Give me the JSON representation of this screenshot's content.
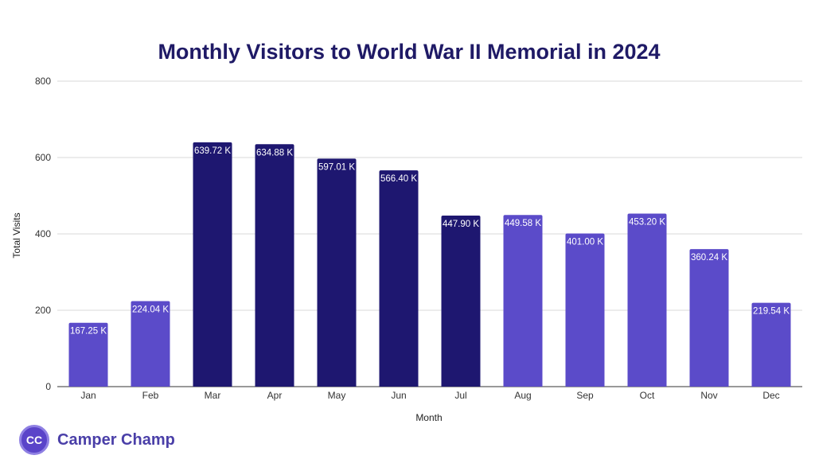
{
  "chart_data": {
    "type": "bar",
    "title": "Monthly Visitors to World War II Memorial in 2024",
    "xlabel": "Month",
    "ylabel": "Total Visits",
    "ylim": [
      0,
      800
    ],
    "yticks": [
      0,
      200,
      400,
      600,
      800
    ],
    "grid": true,
    "categories": [
      "Jan",
      "Feb",
      "Mar",
      "Apr",
      "May",
      "Jun",
      "Jul",
      "Aug",
      "Sep",
      "Oct",
      "Nov",
      "Dec"
    ],
    "values": [
      167.25,
      224.04,
      639.72,
      634.88,
      597.01,
      566.4,
      447.9,
      449.58,
      401.0,
      453.2,
      360.24,
      219.54
    ],
    "data_labels": [
      "167.25 K",
      "224.04 K",
      "639.72 K",
      "634.88 K",
      "597.01 K",
      "566.40 K",
      "447.90 K",
      "449.58 K",
      "401.00 K",
      "453.20 K",
      "360.24 K",
      "219.54 K"
    ],
    "bar_colors": [
      "#5b4bc9",
      "#5b4bc9",
      "#1e1770",
      "#1e1770",
      "#1e1770",
      "#1e1770",
      "#1e1770",
      "#5b4bc9",
      "#5b4bc9",
      "#5b4bc9",
      "#5b4bc9",
      "#5b4bc9"
    ]
  },
  "logo": {
    "badge": "CC",
    "text": "Camper Champ"
  }
}
